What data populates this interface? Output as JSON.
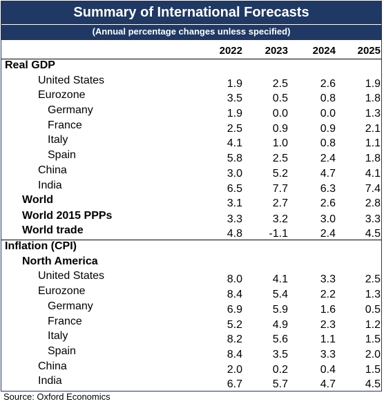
{
  "title": "Summary of International Forecasts",
  "subtitle": "(Annual percentage changes unless specified)",
  "years": [
    "2022",
    "2023",
    "2024",
    "2025"
  ],
  "sections": {
    "gdp": {
      "heading": "Real GDP",
      "rows": [
        {
          "label": "United States",
          "values": [
            "1.9",
            "2.5",
            "2.6",
            "1.9"
          ]
        },
        {
          "label": "Eurozone",
          "values": [
            "3.5",
            "0.5",
            "0.8",
            "1.8"
          ]
        },
        {
          "label": "Germany",
          "values": [
            "1.9",
            "0.0",
            "0.0",
            "1.3"
          ]
        },
        {
          "label": "France",
          "values": [
            "2.5",
            "0.9",
            "0.9",
            "2.1"
          ]
        },
        {
          "label": "Italy",
          "values": [
            "4.1",
            "1.0",
            "0.8",
            "1.1"
          ]
        },
        {
          "label": "Spain",
          "values": [
            "5.8",
            "2.5",
            "2.4",
            "1.8"
          ]
        },
        {
          "label": "China",
          "values": [
            "3.0",
            "5.2",
            "4.7",
            "4.1"
          ]
        },
        {
          "label": "India",
          "values": [
            "6.5",
            "7.7",
            "6.3",
            "7.4"
          ]
        },
        {
          "label": "World",
          "values": [
            "3.1",
            "2.7",
            "2.6",
            "2.8"
          ]
        },
        {
          "label": "World 2015 PPPs",
          "values": [
            "3.3",
            "3.2",
            "3.0",
            "3.3"
          ]
        },
        {
          "label": "World trade",
          "values": [
            "4.8",
            "-1.1",
            "2.4",
            "4.5"
          ]
        }
      ]
    },
    "cpi": {
      "heading": "Inflation (CPI)",
      "subheading": "North America",
      "rows": [
        {
          "label": "United States",
          "values": [
            "8.0",
            "4.1",
            "3.3",
            "2.5"
          ]
        },
        {
          "label": "Eurozone",
          "values": [
            "8.4",
            "5.4",
            "2.2",
            "1.3"
          ]
        },
        {
          "label": "Germany",
          "values": [
            "6.9",
            "5.9",
            "1.6",
            "0.5"
          ]
        },
        {
          "label": "France",
          "values": [
            "5.2",
            "4.9",
            "2.3",
            "1.2"
          ]
        },
        {
          "label": "Italy",
          "values": [
            "8.2",
            "5.6",
            "1.1",
            "1.5"
          ]
        },
        {
          "label": "Spain",
          "values": [
            "8.4",
            "3.5",
            "3.3",
            "2.0"
          ]
        },
        {
          "label": "China",
          "values": [
            "2.0",
            "0.2",
            "0.4",
            "1.5"
          ]
        },
        {
          "label": "India",
          "values": [
            "6.7",
            "5.7",
            "4.7",
            "4.5"
          ]
        }
      ]
    }
  },
  "source": "Source: Oxford Economics",
  "colors": {
    "header_bg": "#1f3864",
    "header_text": "#ffffff"
  }
}
